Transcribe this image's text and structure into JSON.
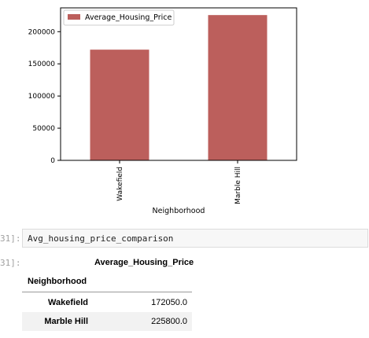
{
  "chart_data": {
    "type": "bar",
    "categories": [
      "Wakefield",
      "Marble Hill"
    ],
    "series": [
      {
        "name": "Average_Housing_Price",
        "values": [
          172050.0,
          225800.0
        ]
      }
    ],
    "xlabel": "Neighborhood",
    "ylabel": "",
    "ylim": [
      0,
      237000
    ],
    "yticks": [
      0,
      50000,
      100000,
      150000,
      200000
    ],
    "legend": "top-left",
    "grid": false,
    "bar_color": "#bc5f5c"
  },
  "notebook": {
    "prompt_in": "31]:",
    "code": "Avg_housing_price_comparison",
    "prompt_out": "31]:"
  },
  "dataframe": {
    "column_header": "Average_Housing_Price",
    "index_name": "Neighborhood",
    "rows": [
      {
        "index": "Wakefield",
        "value": "172050.0"
      },
      {
        "index": "Marble Hill",
        "value": "225800.0"
      }
    ]
  }
}
